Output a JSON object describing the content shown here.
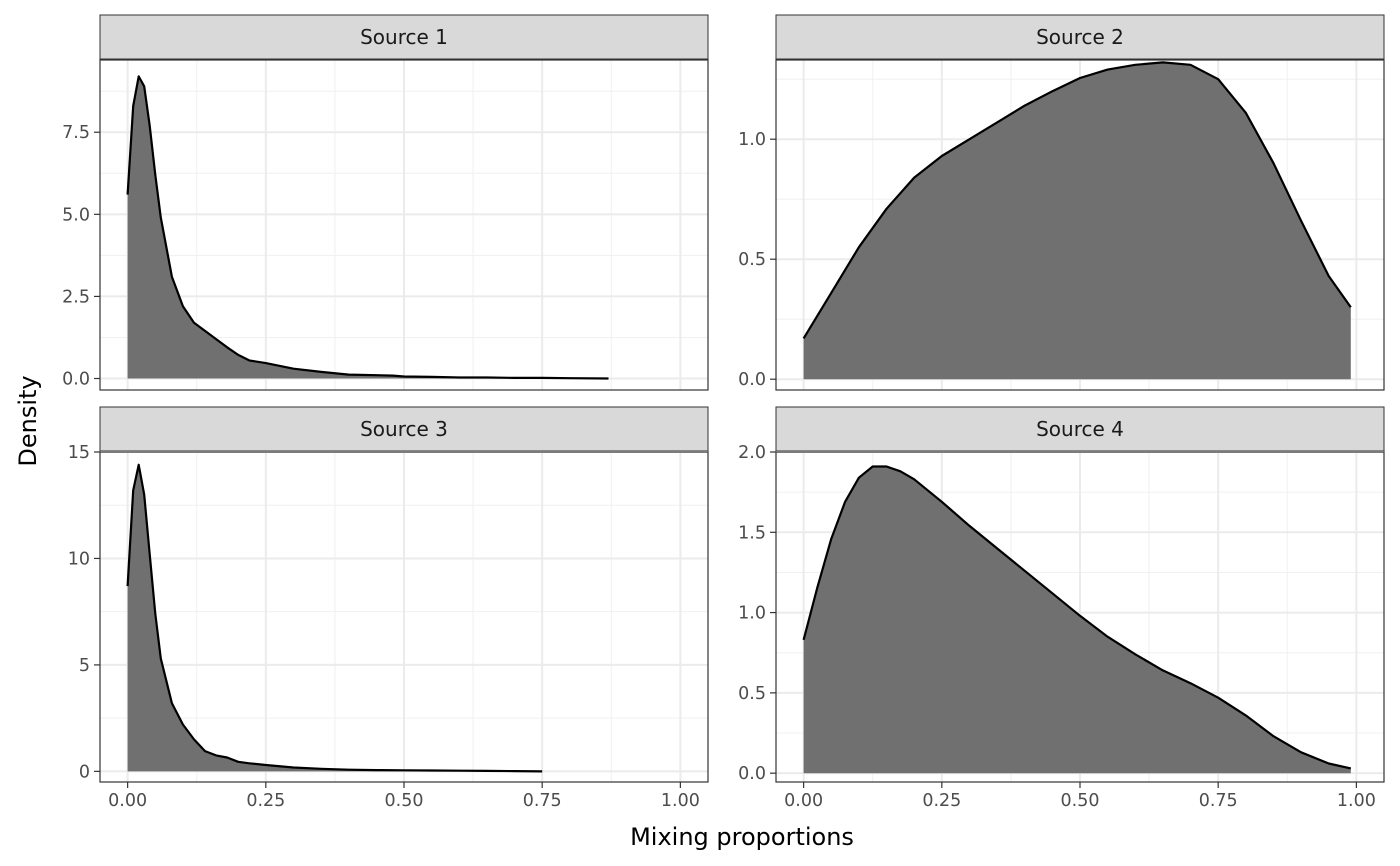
{
  "chart_data": {
    "type": "area",
    "facet_layout": "2x2",
    "xlabel": "Mixing proportions",
    "ylabel": "Density",
    "xlim": [
      0,
      1
    ],
    "x_ticks": [
      "0.00",
      "0.25",
      "0.50",
      "0.75",
      "1.00"
    ],
    "x_tick_values": [
      0,
      0.25,
      0.5,
      0.75,
      1
    ],
    "grid": true,
    "fill_color": "#707070",
    "line_color": "#000000",
    "strip_color": "#d9d9d9",
    "panels": [
      {
        "title": "Source 1",
        "ylim": [
          -0.35,
          9.7
        ],
        "y_ticks": [
          "0.0",
          "2.5",
          "5.0",
          "7.5"
        ],
        "y_tick_values": [
          0,
          2.5,
          5,
          7.5
        ],
        "x": [
          0.0,
          0.01,
          0.02,
          0.03,
          0.04,
          0.05,
          0.06,
          0.08,
          0.1,
          0.12,
          0.14,
          0.16,
          0.18,
          0.2,
          0.22,
          0.25,
          0.28,
          0.3,
          0.35,
          0.4,
          0.45,
          0.48,
          0.5,
          0.55,
          0.6,
          0.65,
          0.7,
          0.75,
          0.8,
          0.87
        ],
        "y": [
          5.6,
          8.3,
          9.2,
          8.9,
          7.7,
          6.2,
          4.9,
          3.1,
          2.2,
          1.7,
          1.45,
          1.2,
          0.95,
          0.72,
          0.55,
          0.47,
          0.37,
          0.3,
          0.2,
          0.12,
          0.1,
          0.09,
          0.06,
          0.05,
          0.03,
          0.03,
          0.02,
          0.02,
          0.01,
          0.0
        ]
      },
      {
        "title": "Source 2",
        "ylim": [
          -0.045,
          1.33
        ],
        "y_ticks": [
          "0.0",
          "0.5",
          "1.0"
        ],
        "y_tick_values": [
          0,
          0.5,
          1.0
        ],
        "x": [
          0.0,
          0.05,
          0.1,
          0.15,
          0.2,
          0.25,
          0.3,
          0.35,
          0.4,
          0.45,
          0.5,
          0.55,
          0.6,
          0.65,
          0.7,
          0.75,
          0.8,
          0.85,
          0.9,
          0.95,
          0.99
        ],
        "y": [
          0.17,
          0.36,
          0.55,
          0.71,
          0.84,
          0.93,
          1.0,
          1.07,
          1.14,
          1.2,
          1.255,
          1.29,
          1.31,
          1.32,
          1.31,
          1.25,
          1.11,
          0.9,
          0.66,
          0.43,
          0.3
        ]
      },
      {
        "title": "Source 3",
        "ylim": [
          -0.5,
          15.0
        ],
        "y_ticks": [
          "0",
          "5",
          "10",
          "15"
        ],
        "y_tick_values": [
          0,
          5,
          10,
          15
        ],
        "x": [
          0.0,
          0.01,
          0.02,
          0.03,
          0.04,
          0.05,
          0.06,
          0.08,
          0.1,
          0.12,
          0.14,
          0.16,
          0.18,
          0.2,
          0.22,
          0.25,
          0.3,
          0.35,
          0.4,
          0.45,
          0.5,
          0.55,
          0.6,
          0.65,
          0.7,
          0.75
        ],
        "y": [
          8.7,
          13.2,
          14.4,
          13.0,
          10.2,
          7.4,
          5.3,
          3.2,
          2.2,
          1.5,
          0.95,
          0.75,
          0.65,
          0.45,
          0.38,
          0.3,
          0.18,
          0.12,
          0.08,
          0.06,
          0.05,
          0.04,
          0.03,
          0.02,
          0.01,
          0.0
        ]
      },
      {
        "title": "Source 4",
        "ylim": [
          -0.055,
          2.0
        ],
        "y_ticks": [
          "0.0",
          "0.5",
          "1.0",
          "1.5",
          "2.0"
        ],
        "y_tick_values": [
          0,
          0.5,
          1.0,
          1.5,
          2.0
        ],
        "x": [
          0.0,
          0.025,
          0.05,
          0.075,
          0.1,
          0.125,
          0.15,
          0.175,
          0.2,
          0.25,
          0.3,
          0.35,
          0.4,
          0.45,
          0.5,
          0.55,
          0.6,
          0.65,
          0.7,
          0.75,
          0.8,
          0.85,
          0.9,
          0.95,
          0.99
        ],
        "y": [
          0.83,
          1.16,
          1.46,
          1.69,
          1.84,
          1.91,
          1.91,
          1.88,
          1.83,
          1.69,
          1.54,
          1.4,
          1.26,
          1.12,
          0.98,
          0.85,
          0.74,
          0.64,
          0.56,
          0.47,
          0.36,
          0.23,
          0.13,
          0.06,
          0.03
        ]
      }
    ]
  }
}
